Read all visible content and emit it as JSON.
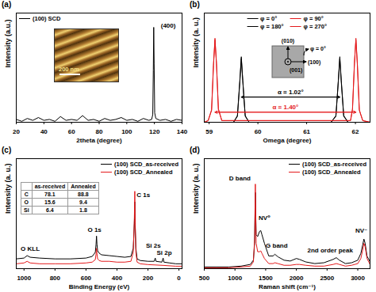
{
  "chart_data": [
    {
      "type": "line",
      "title": "(a)",
      "x_label": "2theta (degree)",
      "y_label": "Intensity (a.u.)",
      "xlim": [
        20,
        140
      ],
      "xticks": [
        20,
        40,
        60,
        80,
        100,
        120,
        140
      ],
      "ylim": [
        0,
        1.15
      ],
      "tick_labels": "x",
      "legend": "top-left",
      "series": [
        {
          "name": "(100) SCD",
          "color": "#000000",
          "x": [
            20,
            24,
            28,
            32,
            36,
            40,
            44,
            48,
            52,
            56,
            60,
            64,
            68,
            72,
            76,
            80,
            84,
            88,
            92,
            96,
            100,
            104,
            108,
            112,
            116,
            118,
            118.8,
            119.2,
            119.5,
            119.8,
            120.2,
            121,
            124,
            128,
            132,
            136,
            140
          ],
          "values": [
            0.03,
            0.01,
            0.04,
            0.02,
            0.05,
            0.02,
            0.03,
            0.01,
            0.06,
            0.02,
            0.03,
            0.02,
            0.07,
            0.02,
            0.03,
            0.01,
            0.04,
            0.02,
            0.03,
            0.05,
            0.02,
            0.03,
            0.01,
            0.04,
            0.02,
            0.03,
            0.08,
            0.55,
            1.0,
            0.62,
            0.1,
            0.04,
            0.02,
            0.03,
            0.01,
            0.03,
            0.02
          ]
        }
      ],
      "annotations": [
        {
          "text": "(400)",
          "x": 130,
          "y": 1.02
        }
      ],
      "inset": {
        "scale_bar": "200 nm"
      }
    },
    {
      "type": "line",
      "title": "(b)",
      "x_label": "Omega (degree)",
      "y_label": "Intensity (a. u.)",
      "xlim": [
        58.9,
        62.3
      ],
      "xticks": [
        59,
        60,
        61,
        62
      ],
      "ylim": [
        0,
        1.3
      ],
      "tick_labels": "x",
      "legend": "top",
      "series": [
        {
          "name": "φ = 0°",
          "color": "#000000",
          "x": [
            58.9,
            59.5,
            59.58,
            59.63,
            59.66,
            59.69,
            59.74,
            59.82,
            61.5,
            61.6,
            61.65,
            61.68,
            61.71,
            61.76,
            61.85,
            62.3
          ],
          "values": [
            0,
            0,
            0.08,
            0.5,
            0.78,
            0.5,
            0.08,
            0,
            0,
            0.08,
            0.5,
            0.78,
            0.5,
            0.08,
            0,
            0
          ]
        },
        {
          "name": "φ = 90°",
          "color": "#e41a1c",
          "x": [
            58.9,
            58.98,
            59.05,
            59.09,
            59.12,
            59.15,
            59.19,
            59.26,
            61.9,
            61.94,
            61.98,
            62.01,
            62.04,
            62.08,
            62.15,
            62.3
          ],
          "values": [
            0,
            0.02,
            0.15,
            0.7,
            1.0,
            0.7,
            0.15,
            0.02,
            0.02,
            0.15,
            0.7,
            1.0,
            0.7,
            0.15,
            0.02,
            0
          ]
        },
        {
          "name": "φ = 180°",
          "color": "#000000",
          "x": [
            58.9,
            59.5,
            59.58,
            59.63,
            59.66,
            59.69,
            59.74,
            59.82,
            61.5,
            61.6,
            61.65,
            61.68,
            61.71,
            61.76,
            61.85,
            62.3
          ],
          "values": [
            0,
            0,
            0.07,
            0.48,
            0.76,
            0.49,
            0.07,
            0,
            0,
            0.07,
            0.49,
            0.76,
            0.48,
            0.07,
            0,
            0
          ]
        },
        {
          "name": "φ = 270°",
          "color": "#e41a1c",
          "x": [
            58.9,
            58.98,
            59.05,
            59.09,
            59.12,
            59.15,
            59.19,
            59.26,
            61.9,
            61.94,
            61.98,
            62.01,
            62.04,
            62.08,
            62.15,
            62.3
          ],
          "values": [
            0,
            0.02,
            0.14,
            0.68,
            0.98,
            0.71,
            0.16,
            0.02,
            0.02,
            0.16,
            0.71,
            0.98,
            0.68,
            0.14,
            0.02,
            0
          ]
        }
      ],
      "arrows": [
        {
          "label": "α = 1.02°",
          "x1": 59.66,
          "x2": 61.68,
          "y": 0.3,
          "color": "#000000"
        },
        {
          "label": "α = 1.40°",
          "x1": 59.12,
          "x2": 62.01,
          "y": 0.12,
          "color": "#e41a1c"
        }
      ],
      "inset": {
        "top": "(010)",
        "center": "(001)",
        "right": "(100)",
        "rotation": "φ = 0°"
      }
    },
    {
      "type": "line",
      "title": "(c)",
      "x_label": "Binding Energy (eV)",
      "y_label": "Intensity (a. u.)",
      "xlim": [
        1050,
        -20
      ],
      "xticks": [
        1000,
        800,
        600,
        400,
        200,
        0
      ],
      "ylim": [
        0,
        1.35
      ],
      "tick_labels": "x",
      "legend": "top-right",
      "series": [
        {
          "name": "(100) SCD_as-received",
          "color": "#000000",
          "x": [
            1050,
            1000,
            980,
            960,
            900,
            800,
            700,
            600,
            560,
            540,
            535,
            532,
            529,
            525,
            515,
            500,
            450,
            400,
            350,
            310,
            295,
            288,
            285,
            282,
            278,
            270,
            250,
            200,
            160,
            153,
            148,
            110,
            102,
            97,
            60,
            20,
            -20
          ],
          "values": [
            0.12,
            0.13,
            0.16,
            0.14,
            0.13,
            0.12,
            0.12,
            0.13,
            0.15,
            0.2,
            0.3,
            0.4,
            0.3,
            0.22,
            0.19,
            0.17,
            0.16,
            0.15,
            0.14,
            0.15,
            0.25,
            0.55,
            0.82,
            0.5,
            0.25,
            0.12,
            0.1,
            0.09,
            0.09,
            0.13,
            0.09,
            0.08,
            0.13,
            0.08,
            0.07,
            0.06,
            0.06
          ]
        },
        {
          "name": "(100) SCD_Annealed",
          "color": "#e41a1c",
          "x": [
            1050,
            1000,
            980,
            960,
            900,
            800,
            700,
            600,
            560,
            540,
            535,
            532,
            529,
            525,
            515,
            500,
            450,
            400,
            350,
            310,
            295,
            288,
            285,
            282,
            278,
            270,
            250,
            200,
            100,
            20,
            -20
          ],
          "values": [
            0.06,
            0.07,
            0.09,
            0.07,
            0.06,
            0.06,
            0.06,
            0.07,
            0.08,
            0.11,
            0.18,
            0.25,
            0.18,
            0.12,
            0.1,
            0.09,
            0.09,
            0.08,
            0.08,
            0.09,
            0.2,
            0.6,
            0.95,
            0.55,
            0.2,
            0.08,
            0.06,
            0.05,
            0.04,
            0.03,
            0.03
          ]
        }
      ],
      "annotations": [
        {
          "text": "O KLL",
          "x": 960,
          "y": 0.24
        },
        {
          "text": "O 1s",
          "x": 545,
          "y": 0.48
        },
        {
          "text": "C 1s",
          "x": 230,
          "y": 0.9
        },
        {
          "text": "Si 2s",
          "x": 165,
          "y": 0.28
        },
        {
          "text": "Si 2p",
          "x": 95,
          "y": 0.19
        }
      ],
      "table": {
        "columns": [
          "as-received",
          "Annealed"
        ],
        "rows": [
          {
            "label": "C",
            "values": [
              78.1,
              88.8
            ]
          },
          {
            "label": "O",
            "values": [
              15.6,
              9.4
            ]
          },
          {
            "label": "Si",
            "values": [
              6.4,
              1.8
            ]
          }
        ]
      }
    },
    {
      "type": "line",
      "title": "(d)",
      "x_label": "Raman shift (cm⁻¹)",
      "y_label": "Intensity (a. u.)",
      "xlim": [
        500,
        3200
      ],
      "xticks": [
        500,
        1000,
        1500,
        2000,
        2500,
        3000
      ],
      "ylim": [
        0,
        1.3
      ],
      "tick_labels": "x",
      "legend": "top-right",
      "series": [
        {
          "name": "(100) SCD_as-received",
          "color": "#000000",
          "x": [
            500,
            700,
            900,
            1100,
            1250,
            1300,
            1320,
            1332,
            1345,
            1370,
            1400,
            1420,
            1440,
            1480,
            1550,
            1620,
            1650,
            1700,
            1800,
            1900,
            2000,
            2050,
            2150,
            2300,
            2450,
            2600,
            2650,
            2700,
            2800,
            2900,
            3000,
            3050,
            3080,
            3100,
            3120,
            3150,
            3200
          ],
          "values": [
            0.02,
            0.02,
            0.02,
            0.03,
            0.05,
            0.1,
            0.3,
            0.9,
            0.4,
            0.38,
            0.44,
            0.45,
            0.4,
            0.3,
            0.15,
            0.15,
            0.17,
            0.14,
            0.1,
            0.09,
            0.12,
            0.11,
            0.08,
            0.06,
            0.07,
            0.11,
            0.13,
            0.1,
            0.06,
            0.07,
            0.1,
            0.18,
            0.28,
            0.35,
            0.3,
            0.15,
            0.08
          ]
        },
        {
          "name": "(100) SCD_Annealed",
          "color": "#e41a1c",
          "x": [
            500,
            700,
            900,
            1100,
            1250,
            1300,
            1320,
            1332,
            1345,
            1370,
            1400,
            1420,
            1440,
            1480,
            1550,
            1620,
            1650,
            1700,
            1800,
            1900,
            2000,
            2050,
            2150,
            2300,
            2450,
            2600,
            2650,
            2700,
            2800,
            2900,
            3000,
            3050,
            3080,
            3100,
            3120,
            3150,
            3200
          ],
          "values": [
            0.01,
            0.01,
            0.01,
            0.02,
            0.03,
            0.08,
            0.35,
            1.0,
            0.3,
            0.2,
            0.2,
            0.21,
            0.18,
            0.12,
            0.06,
            0.06,
            0.07,
            0.06,
            0.04,
            0.04,
            0.05,
            0.05,
            0.04,
            0.03,
            0.03,
            0.05,
            0.06,
            0.05,
            0.03,
            0.04,
            0.06,
            0.12,
            0.22,
            0.3,
            0.26,
            0.12,
            0.05
          ]
        }
      ],
      "annotations": [
        {
          "text": "D band",
          "x": 1080,
          "y": 1.07
        },
        {
          "text": "NV⁰",
          "x": 1480,
          "y": 0.6
        },
        {
          "text": "G band",
          "x": 1680,
          "y": 0.27
        },
        {
          "text": "2nd order peak",
          "x": 2550,
          "y": 0.22
        },
        {
          "text": "NV⁻",
          "x": 3060,
          "y": 0.45
        }
      ]
    }
  ]
}
